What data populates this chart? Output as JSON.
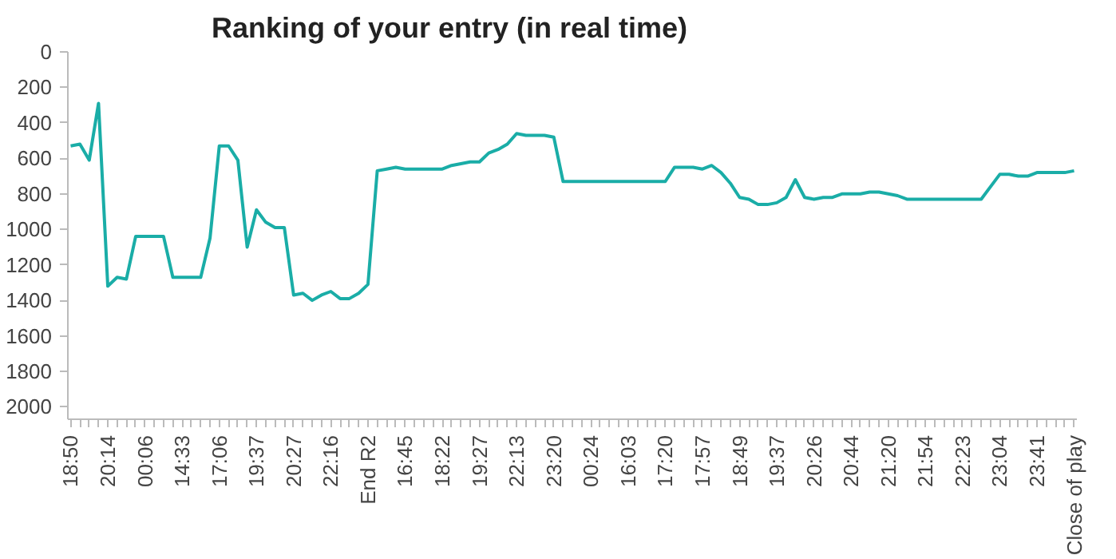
{
  "chart_data": {
    "type": "line",
    "title": "Ranking of your entry (in real time)",
    "categories": [
      "18:50",
      null,
      null,
      null,
      "20:14",
      null,
      null,
      null,
      "00:06",
      null,
      null,
      null,
      "14:33",
      null,
      null,
      null,
      "17:06",
      null,
      null,
      null,
      "19:37",
      null,
      null,
      null,
      "20:27",
      null,
      null,
      null,
      "22:16",
      null,
      null,
      null,
      "End R2",
      null,
      null,
      null,
      "16:45",
      null,
      null,
      null,
      "18:22",
      null,
      null,
      null,
      "19:27",
      null,
      null,
      null,
      "22:13",
      null,
      null,
      null,
      "23:20",
      null,
      null,
      null,
      "00:24",
      null,
      null,
      null,
      "16:03",
      null,
      null,
      null,
      "17:20",
      null,
      null,
      null,
      "17:57",
      null,
      null,
      null,
      "18:49",
      null,
      null,
      null,
      "19:37",
      null,
      null,
      null,
      "20:26",
      null,
      null,
      null,
      "20:44",
      null,
      null,
      null,
      "21:20",
      null,
      null,
      null,
      "21:54",
      null,
      null,
      null,
      "22:23",
      null,
      null,
      null,
      "23:04",
      null,
      null,
      null,
      "23:41",
      null,
      null,
      null,
      "Close of play"
    ],
    "series": [
      {
        "color": "#1aada7",
        "values": [
          530,
          520,
          610,
          290,
          1320,
          1270,
          1280,
          1040,
          1040,
          1040,
          1040,
          1270,
          1270,
          1270,
          1270,
          1050,
          530,
          530,
          610,
          1100,
          890,
          960,
          990,
          990,
          1370,
          1360,
          1400,
          1370,
          1350,
          1390,
          1390,
          1360,
          1310,
          670,
          660,
          650,
          660,
          660,
          660,
          660,
          660,
          640,
          630,
          620,
          620,
          570,
          550,
          520,
          460,
          470,
          470,
          470,
          480,
          730,
          730,
          730,
          730,
          730,
          730,
          730,
          730,
          730,
          730,
          730,
          730,
          650,
          650,
          650,
          660,
          640,
          680,
          740,
          820,
          830,
          860,
          860,
          850,
          820,
          720,
          820,
          830,
          820,
          820,
          800,
          800,
          800,
          790,
          790,
          800,
          810,
          830,
          830,
          830,
          830,
          830,
          830,
          830,
          830,
          830,
          760,
          690,
          690,
          700,
          700,
          680,
          680,
          680,
          680,
          670
        ]
      }
    ],
    "ylim": [
      2070,
      0
    ],
    "yticks": [
      0,
      200,
      400,
      600,
      800,
      1000,
      1200,
      1400,
      1600,
      1800,
      2000
    ],
    "grid": false,
    "marker": "none",
    "line_style": "solid"
  }
}
